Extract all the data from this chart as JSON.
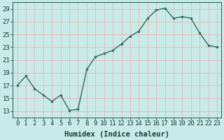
{
  "x": [
    0,
    1,
    2,
    3,
    4,
    5,
    6,
    7,
    8,
    9,
    10,
    11,
    12,
    13,
    14,
    15,
    16,
    17,
    18,
    19,
    20,
    21,
    22,
    23
  ],
  "y": [
    17,
    18.5,
    16.5,
    15.5,
    14.5,
    15.5,
    13.1,
    13.3,
    19.5,
    21.5,
    22,
    22.5,
    23.5,
    24.7,
    25.5,
    27.5,
    28.8,
    29.1,
    27.5,
    27.8,
    27.5,
    25.2,
    23.3,
    23.0
  ],
  "line_color": "#2d6b5f",
  "marker_color": "#2d6b5f",
  "bg_color": "#c8eae8",
  "grid_color": "#e8b4b4",
  "xlabel": "Humidex (Indice chaleur)",
  "ylim": [
    12,
    30
  ],
  "xlim": [
    -0.5,
    23.5
  ],
  "yticks": [
    13,
    15,
    17,
    19,
    21,
    23,
    25,
    27,
    29
  ],
  "xticks": [
    0,
    1,
    2,
    3,
    4,
    5,
    6,
    7,
    8,
    9,
    10,
    11,
    12,
    13,
    14,
    15,
    16,
    17,
    18,
    19,
    20,
    21,
    22,
    23
  ],
  "xlabel_fontsize": 7.5,
  "tick_fontsize": 6.5
}
